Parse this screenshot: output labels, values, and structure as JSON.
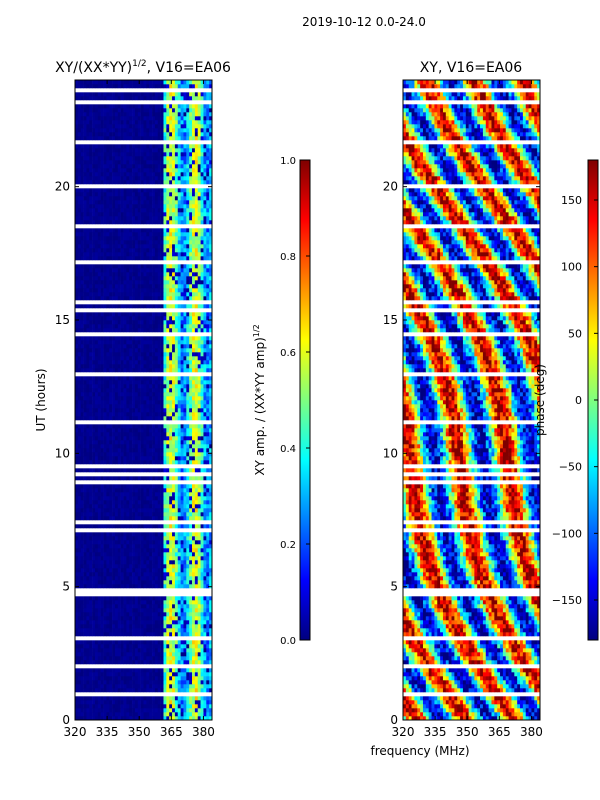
{
  "suptitle": "2019-10-12 0.0-24.0",
  "shared_xlabel": "frequency (MHz)",
  "colors": {
    "jet": [
      "#00007f",
      "#0000ff",
      "#007fff",
      "#00ffff",
      "#7fff7f",
      "#ffff00",
      "#ff7f00",
      "#ff0000",
      "#7f0000"
    ],
    "gap": "#ffffff"
  },
  "chart_data": [
    {
      "type": "heatmap",
      "id": "amp",
      "title_base": "XY/(XX*YY)",
      "title_sup": "1/2",
      "title_tail": ", V16=EA06",
      "xlabel": "",
      "ylabel": "UT (hours)",
      "xlim": [
        320,
        384
      ],
      "ylim": [
        0,
        24
      ],
      "xticks": [
        320,
        335,
        350,
        365,
        380
      ],
      "yticks": [
        0,
        5,
        10,
        15,
        20
      ],
      "colorbar": {
        "label_base": "XY amp. / (XX*YY amp)",
        "label_sup": "1/2",
        "range": [
          0.0,
          1.0
        ],
        "ticks": [
          "0.0",
          "0.2",
          "0.4",
          "0.6",
          "0.8",
          "1.0"
        ]
      },
      "description": "low amplitude (~0) below 361 MHz; bright streaks between 362 and 381 MHz"
    },
    {
      "type": "heatmap",
      "id": "phase",
      "title_base": "XY, V16=EA06",
      "title_sup": "",
      "title_tail": "",
      "xlabel": "",
      "ylabel": "",
      "xlim": [
        320,
        384
      ],
      "ylim": [
        0,
        24
      ],
      "xticks": [
        320,
        335,
        350,
        365,
        380
      ],
      "yticks": [
        0,
        5,
        10,
        15,
        20
      ],
      "colorbar": {
        "label_base": "phase (deg)",
        "label_sup": "",
        "range": [
          -180,
          180
        ],
        "ticks": [
          "−150",
          "−100",
          "−50",
          "0",
          "50",
          "100",
          "150"
        ]
      },
      "description": "noisy phase spanning full -180..180 range across all frequencies"
    }
  ]
}
